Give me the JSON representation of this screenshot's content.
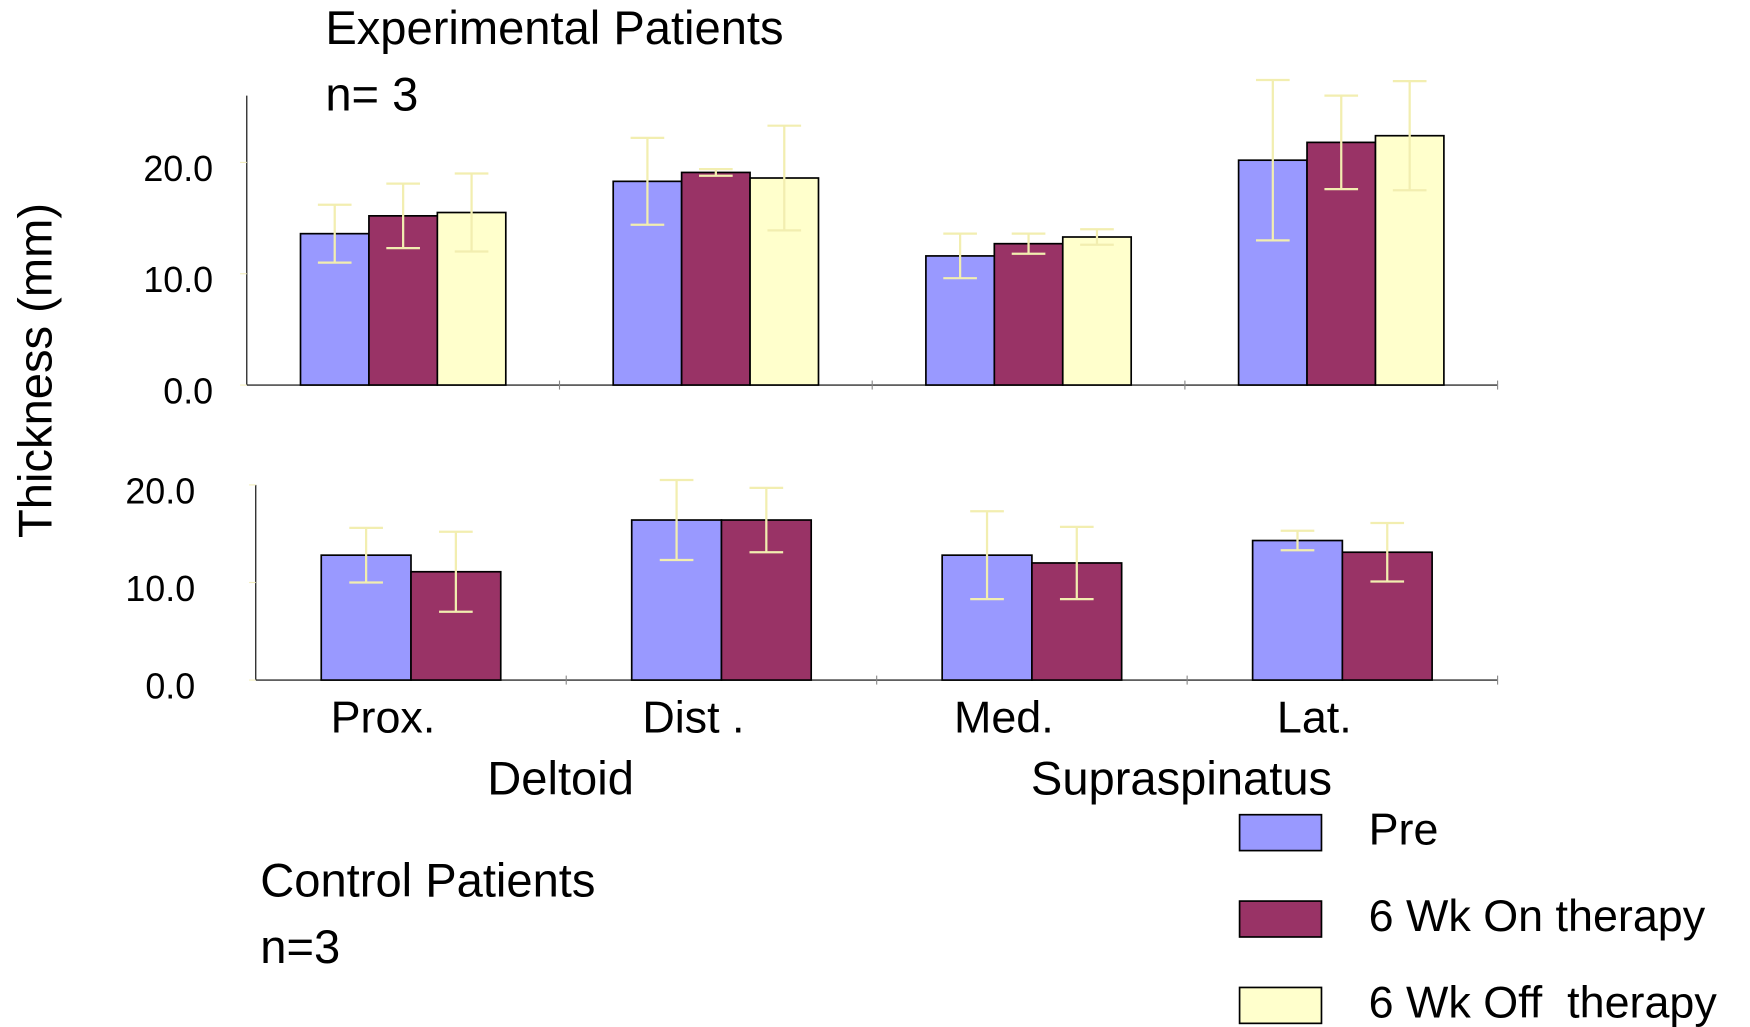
{
  "chart_data": [
    {
      "type": "bar",
      "title": "Experimental Patients",
      "subtitle": "n= 3",
      "y_label": "Thickness (mm)",
      "ylim": [
        0,
        26
      ],
      "yticks": [
        {
          "value": 0,
          "label": "0.0"
        },
        {
          "value": 10,
          "label": "10.0"
        },
        {
          "value": 20,
          "label": "20.0"
        }
      ],
      "legend": "lower right",
      "series": [
        {
          "name": "Pre",
          "color": "#9999ff",
          "values": [
            13.6,
            18.3,
            11.6,
            20.2
          ],
          "errors": [
            2.6,
            3.9,
            2.0,
            7.2
          ]
        },
        {
          "name": "6 Wk On therapy",
          "color": "#993366",
          "values": [
            15.2,
            19.1,
            12.7,
            21.8
          ],
          "errors": [
            2.9,
            0.3,
            0.9,
            4.2
          ]
        },
        {
          "name": "6 Wk Off  therapy",
          "color": "#ffffcc",
          "values": [
            15.5,
            18.6,
            13.3,
            22.4
          ],
          "errors": [
            3.5,
            4.7,
            0.7,
            4.9
          ]
        }
      ]
    },
    {
      "type": "bar",
      "title": "Control Patients",
      "subtitle": "n=3",
      "categories": [
        "Prox.",
        "Dist .",
        "Med.",
        "Lat."
      ],
      "x_groups": [
        "Deltoid",
        "Supraspinatus"
      ],
      "ylim": [
        0,
        20
      ],
      "yticks": [
        {
          "value": 0,
          "label": "0.0"
        },
        {
          "value": 10,
          "label": "10.0"
        },
        {
          "value": 20,
          "label": "20.0"
        }
      ],
      "series": [
        {
          "color": "#9999ff",
          "values": [
            12.8,
            16.4,
            12.8,
            14.3
          ],
          "errors": [
            2.8,
            4.1,
            4.5,
            1.0
          ]
        },
        {
          "color": "#993366",
          "values": [
            11.1,
            16.4,
            12.0,
            13.1
          ],
          "errors": [
            4.1,
            3.3,
            3.7,
            3.0
          ]
        }
      ]
    }
  ]
}
